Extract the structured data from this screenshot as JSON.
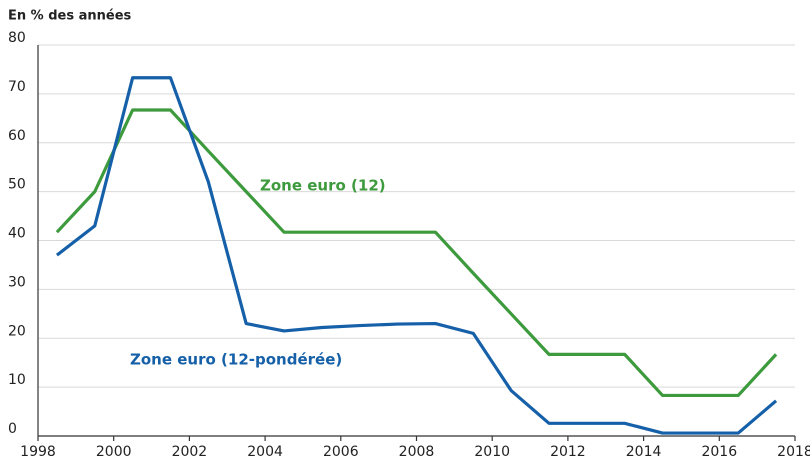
{
  "chart_data": {
    "type": "line",
    "title": "En % des années",
    "x": [
      1998.5,
      1999.5,
      2000.5,
      2001.5,
      2002.5,
      2003.5,
      2004.5,
      2005.5,
      2006.5,
      2007.5,
      2008.5,
      2009.5,
      2010.5,
      2011.5,
      2012.5,
      2013.5,
      2014.5,
      2015.5,
      2016.5,
      2017.5
    ],
    "series": [
      {
        "name": "Zone euro (12)",
        "color": "#3d9a3d",
        "values": [
          41.7,
          50,
          66.7,
          66.7,
          58.3,
          50,
          41.7,
          41.7,
          41.7,
          41.7,
          41.7,
          33.3,
          25,
          16.7,
          16.7,
          16.7,
          8.3,
          8.3,
          8.3,
          16.7
        ]
      },
      {
        "name": "Zone euro (12-pondérée)",
        "color": "#1560a8",
        "values": [
          37,
          43,
          73.3,
          73.3,
          52,
          23,
          21.5,
          22.2,
          22.6,
          22.9,
          23,
          21,
          9.3,
          2.6,
          2.6,
          2.6,
          0.6,
          0.6,
          0.6,
          7.2
        ]
      }
    ],
    "xlim": [
      1998,
      2018
    ],
    "xticks": [
      1998,
      2000,
      2002,
      2004,
      2006,
      2008,
      2010,
      2012,
      2014,
      2016,
      2018
    ],
    "ylim": [
      0,
      80
    ],
    "yticks": [
      0,
      10,
      20,
      30,
      40,
      50,
      60,
      70,
      80
    ],
    "grid": true
  }
}
